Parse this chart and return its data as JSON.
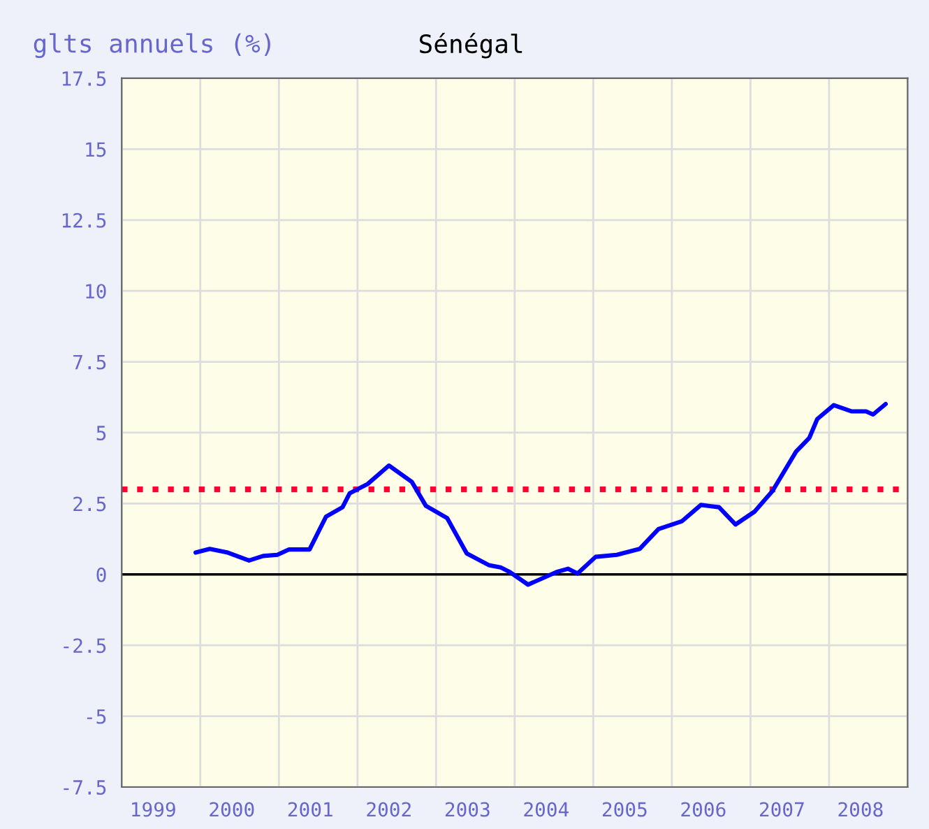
{
  "chart_data": {
    "type": "line",
    "title": "Sénégal",
    "ylabel": "glts annuels (%)",
    "x": [
      1999.94,
      2000.12,
      2000.35,
      2000.62,
      2000.8,
      2000.98,
      2001.13,
      2001.39,
      2001.6,
      2001.81,
      2001.9,
      2002.13,
      2002.4,
      2002.69,
      2002.87,
      2003.14,
      2003.39,
      2003.67,
      2003.82,
      2003.94,
      2004.17,
      2004.53,
      2004.68,
      2004.8,
      2005.03,
      2005.3,
      2005.59,
      2005.83,
      2006.13,
      2006.37,
      2006.6,
      2006.81,
      2007.05,
      2007.28,
      2007.58,
      2007.75,
      2007.85,
      2008.06,
      2008.29,
      2008.47,
      2008.56,
      2008.72
    ],
    "series": [
      {
        "color": "#0000ff",
        "values": [
          0.77,
          0.9,
          0.77,
          0.49,
          0.65,
          0.69,
          0.88,
          0.88,
          2.04,
          2.37,
          2.86,
          3.19,
          3.84,
          3.27,
          2.42,
          1.99,
          0.74,
          0.33,
          0.25,
          0.08,
          -0.36,
          0.08,
          0.2,
          0.03,
          0.62,
          0.69,
          0.9,
          1.6,
          1.88,
          2.45,
          2.37,
          1.76,
          2.21,
          2.94,
          4.33,
          4.82,
          5.48,
          5.97,
          5.75,
          5.75,
          5.64,
          6.01
        ]
      }
    ],
    "xlim": [
      1999,
      2009
    ],
    "xticks": [
      {
        "value": 1999,
        "label": null
      },
      {
        "value": 1999.4,
        "label": "1999"
      },
      {
        "value": 2000,
        "label": null
      },
      {
        "value": 2000.4,
        "label": "2000"
      },
      {
        "value": 2001,
        "label": null
      },
      {
        "value": 2001.4,
        "label": "2001"
      },
      {
        "value": 2002,
        "label": null
      },
      {
        "value": 2002.4,
        "label": "2002"
      },
      {
        "value": 2003,
        "label": null
      },
      {
        "value": 2003.4,
        "label": "2003"
      },
      {
        "value": 2004,
        "label": null
      },
      {
        "value": 2004.4,
        "label": "2004"
      },
      {
        "value": 2005,
        "label": null
      },
      {
        "value": 2005.4,
        "label": "2005"
      },
      {
        "value": 2006,
        "label": null
      },
      {
        "value": 2006.4,
        "label": "2006"
      },
      {
        "value": 2007,
        "label": null
      },
      {
        "value": 2007.4,
        "label": "2007"
      },
      {
        "value": 2008,
        "label": null
      },
      {
        "value": 2008.4,
        "label": "2008"
      },
      {
        "value": 2009,
        "label": null
      }
    ],
    "ylim": [
      -7.5,
      17.5
    ],
    "yticks": [
      -7.5,
      -5,
      -2.5,
      0,
      2.5,
      5,
      7.5,
      10,
      12.5,
      15,
      17.5
    ],
    "ref_lines": [
      {
        "axis": "y",
        "value": 3,
        "color": "#ff0033",
        "line_style": "dotted"
      },
      {
        "axis": "y",
        "value": 0,
        "color": "#000000",
        "line_style": "solid"
      }
    ],
    "grid": true,
    "legend": false,
    "marker": "none",
    "line_style": "solid"
  }
}
